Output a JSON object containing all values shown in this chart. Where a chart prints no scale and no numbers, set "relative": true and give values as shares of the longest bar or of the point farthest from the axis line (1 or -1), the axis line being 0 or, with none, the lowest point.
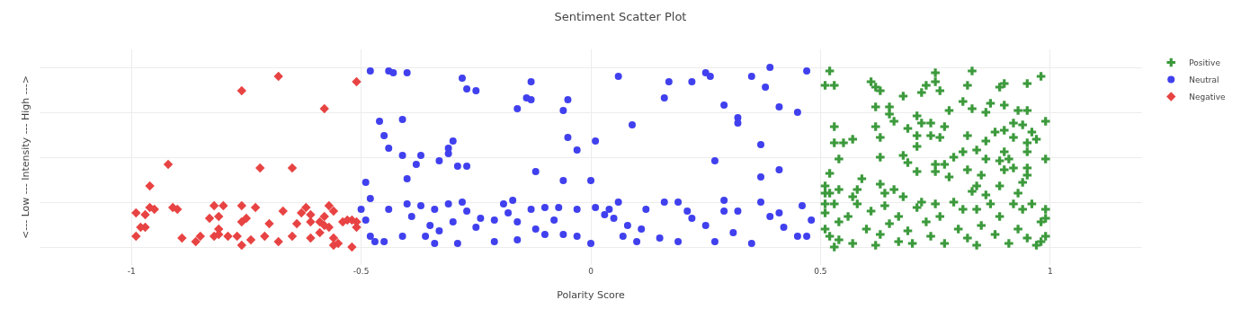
{
  "chart_data": {
    "type": "scatter",
    "title": "Sentiment Scatter Plot",
    "xlabel": "Polarity Score",
    "ylabel": "<--- Low --- Intensity --- High --->",
    "relative": true,
    "xlim": [
      -1.2,
      1.2
    ],
    "xticks": [
      -1,
      -0.5,
      0,
      0.5,
      1
    ],
    "grid": true,
    "legend": "top right",
    "series": [
      {
        "name": "Positive",
        "color": "#3c9a3c",
        "marker": "cross",
        "x": [
          0.52,
          0.51,
          0.53,
          0.61,
          0.62,
          0.63,
          0.68,
          0.75,
          0.75,
          0.73,
          0.72,
          0.76,
          0.83,
          0.82,
          0.9,
          0.89,
          0.95,
          0.98,
          0.62,
          0.65,
          0.65,
          0.66,
          0.78,
          0.81,
          0.83,
          0.86,
          0.87,
          0.9,
          0.93,
          0.95,
          0.99,
          0.53,
          0.53,
          0.55,
          0.57,
          0.54,
          0.62,
          0.63,
          0.63,
          0.69,
          0.71,
          0.72,
          0.74,
          0.71,
          0.74,
          0.76,
          0.77,
          0.71,
          0.68,
          0.69,
          0.71,
          0.75,
          0.75,
          0.77,
          0.78,
          0.79,
          0.81,
          0.82,
          0.84,
          0.86,
          0.88,
          0.9,
          0.92,
          0.94,
          0.92,
          0.9,
          0.95,
          0.97,
          0.96,
          0.95,
          0.99,
          0.86,
          0.89,
          0.91,
          0.9,
          0.92,
          0.95,
          0.95,
          0.82,
          0.85,
          0.52,
          0.59,
          0.63,
          0.66,
          0.89,
          0.84,
          0.83,
          0.86,
          0.93,
          0.94,
          0.51,
          0.51,
          0.52,
          0.54,
          0.58,
          0.57,
          0.64,
          0.68,
          0.51,
          0.53,
          0.51,
          0.51,
          0.52,
          0.53,
          0.54,
          0.54,
          0.56,
          0.57,
          0.58,
          0.6,
          0.62,
          0.61,
          0.63,
          0.64,
          0.65,
          0.67,
          0.67,
          0.69,
          0.7,
          0.71,
          0.72,
          0.73,
          0.74,
          0.75,
          0.76,
          0.77,
          0.79,
          0.8,
          0.81,
          0.82,
          0.84,
          0.84,
          0.85,
          0.87,
          0.88,
          0.89,
          0.91,
          0.92,
          0.93,
          0.94,
          0.95,
          0.96,
          0.97,
          0.98,
          0.98,
          0.99,
          0.99,
          0.99
        ],
        "values": [
          0.98,
          0.9,
          0.9,
          0.92,
          0.89,
          0.87,
          0.84,
          0.97,
          0.92,
          0.9,
          0.86,
          0.87,
          0.98,
          0.9,
          0.91,
          0.89,
          0.91,
          0.95,
          0.78,
          0.78,
          0.74,
          0.7,
          0.76,
          0.81,
          0.77,
          0.75,
          0.8,
          0.79,
          0.76,
          0.76,
          0.7,
          0.67,
          0.58,
          0.58,
          0.6,
          0.49,
          0.67,
          0.61,
          0.5,
          0.66,
          0.73,
          0.69,
          0.69,
          0.62,
          0.62,
          0.61,
          0.67,
          0.56,
          0.51,
          0.47,
          0.42,
          0.46,
          0.42,
          0.46,
          0.39,
          0.5,
          0.53,
          0.62,
          0.54,
          0.59,
          0.64,
          0.65,
          0.69,
          0.68,
          0.61,
          0.53,
          0.58,
          0.6,
          0.64,
          0.53,
          0.49,
          0.49,
          0.48,
          0.49,
          0.43,
          0.44,
          0.44,
          0.4,
          0.43,
          0.4,
          0.41,
          0.38,
          0.35,
          0.32,
          0.34,
          0.34,
          0.31,
          0.29,
          0.3,
          0.36,
          0.34,
          0.3,
          0.3,
          0.32,
          0.32,
          0.28,
          0.3,
          0.28,
          0.24,
          0.24,
          0.19,
          0.1,
          0.06,
          0.0,
          0.14,
          0.04,
          0.17,
          0.02,
          0.24,
          0.1,
          0.01,
          0.2,
          0.07,
          0.23,
          0.13,
          0.03,
          0.17,
          0.09,
          0.02,
          0.22,
          0.25,
          0.14,
          0.06,
          0.24,
          0.17,
          0.02,
          0.25,
          0.1,
          0.21,
          0.05,
          0.01,
          0.21,
          0.12,
          0.24,
          0.07,
          0.17,
          0.02,
          0.24,
          0.1,
          0.21,
          0.05,
          0.24,
          0.01,
          0.14,
          0.03,
          0.21,
          0.06,
          0.16
        ]
      },
      {
        "name": "Neutral",
        "color": "#4040ee",
        "marker": "circle",
        "x": [
          -0.48,
          -0.44,
          -0.43,
          -0.4,
          -0.28,
          -0.27,
          -0.25,
          -0.13,
          -0.14,
          -0.13,
          -0.16,
          -0.05,
          -0.06,
          0.06,
          0.17,
          0.22,
          0.25,
          0.26,
          0.16,
          0.29,
          0.35,
          0.39,
          0.38,
          0.41,
          0.45,
          0.47,
          -0.46,
          -0.41,
          -0.45,
          -0.44,
          -0.41,
          -0.37,
          -0.38,
          -0.33,
          -0.31,
          -0.31,
          -0.3,
          -0.29,
          -0.27,
          -0.49,
          -0.4,
          -0.12,
          -0.05,
          -0.03,
          -0.06,
          0.0,
          0.01,
          0.09,
          0.32,
          0.32,
          0.37,
          0.27,
          0.37,
          0.41,
          0.29,
          -0.17,
          -0.5,
          -0.48,
          -0.49,
          -0.48,
          -0.47,
          -0.45,
          -0.44,
          -0.41,
          -0.4,
          -0.39,
          -0.37,
          -0.36,
          -0.35,
          -0.34,
          -0.34,
          -0.33,
          -0.31,
          -0.3,
          -0.29,
          -0.28,
          -0.27,
          -0.25,
          -0.24,
          -0.21,
          -0.21,
          -0.19,
          -0.18,
          -0.16,
          -0.16,
          -0.13,
          -0.12,
          -0.1,
          -0.1,
          -0.08,
          -0.07,
          -0.06,
          -0.03,
          -0.03,
          0.0,
          0.01,
          0.03,
          0.04,
          0.05,
          0.06,
          0.07,
          0.08,
          0.1,
          0.11,
          0.12,
          0.15,
          0.16,
          0.19,
          0.19,
          0.21,
          0.22,
          0.25,
          0.27,
          0.29,
          0.31,
          0.32,
          0.35,
          0.37,
          0.39,
          0.41,
          0.42,
          0.45,
          0.46,
          0.48,
          0.47
        ],
        "values": [
          0.98,
          0.98,
          0.97,
          0.97,
          0.94,
          0.88,
          0.87,
          0.92,
          0.83,
          0.82,
          0.77,
          0.82,
          0.76,
          0.95,
          0.92,
          0.92,
          0.97,
          0.95,
          0.83,
          0.79,
          0.95,
          1,
          0.89,
          0.78,
          0.75,
          0.98,
          0.7,
          0.71,
          0.62,
          0.55,
          0.51,
          0.51,
          0.46,
          0.48,
          0.52,
          0.55,
          0.59,
          0.45,
          0.45,
          0.36,
          0.38,
          0.42,
          0.61,
          0.54,
          0.37,
          0.37,
          0.59,
          0.68,
          0.72,
          0.69,
          0.57,
          0.48,
          0.39,
          0.43,
          0.26,
          0.26,
          0.21,
          0.27,
          0.15,
          0.06,
          0.03,
          0.03,
          0.21,
          0.06,
          0.24,
          0.17,
          0.23,
          0.06,
          0.12,
          0.21,
          0.02,
          0.09,
          0.24,
          0.14,
          0.02,
          0.25,
          0.2,
          0.11,
          0.16,
          0.03,
          0.15,
          0.24,
          0.19,
          0.04,
          0.14,
          0.21,
          0.1,
          0.07,
          0.22,
          0.15,
          0.22,
          0.07,
          0.06,
          0.21,
          0.02,
          0.22,
          0.18,
          0.21,
          0.16,
          0.25,
          0.06,
          0.12,
          0.03,
          0.1,
          0.21,
          0.05,
          0.25,
          0.25,
          0.03,
          0.2,
          0.16,
          0.12,
          0.03,
          0.2,
          0.08,
          0.2,
          0.02,
          0.25,
          0.17,
          0.19,
          0.11,
          0.06,
          0.23,
          0.15,
          0.06
        ]
      },
      {
        "name": "Negative",
        "color": "#e84343",
        "marker": "diamond",
        "x": [
          -0.76,
          -0.68,
          -0.51,
          -0.58,
          -0.92,
          -0.96,
          -0.72,
          -0.65,
          -0.99,
          -0.99,
          -0.98,
          -0.97,
          -0.97,
          -0.96,
          -0.95,
          -0.91,
          -0.9,
          -0.89,
          -0.86,
          -0.85,
          -0.83,
          -0.82,
          -0.82,
          -0.81,
          -0.81,
          -0.81,
          -0.8,
          -0.79,
          -0.77,
          -0.76,
          -0.76,
          -0.76,
          -0.75,
          -0.74,
          -0.73,
          -0.71,
          -0.7,
          -0.68,
          -0.67,
          -0.65,
          -0.64,
          -0.63,
          -0.62,
          -0.61,
          -0.61,
          -0.61,
          -0.59,
          -0.59,
          -0.58,
          -0.58,
          -0.57,
          -0.57,
          -0.56,
          -0.56,
          -0.56,
          -0.55,
          -0.54,
          -0.53,
          -0.52,
          -0.52,
          -0.51,
          -0.51
        ],
        "values": [
          0.87,
          0.95,
          0.92,
          0.77,
          0.46,
          0.34,
          0.44,
          0.44,
          0.19,
          0.06,
          0.11,
          0.11,
          0.18,
          0.22,
          0.21,
          0.22,
          0.21,
          0.05,
          0.03,
          0.06,
          0.16,
          0.06,
          0.23,
          0.07,
          0.17,
          0.1,
          0.23,
          0.06,
          0.06,
          0.14,
          0.23,
          0.01,
          0.16,
          0.04,
          0.22,
          0.06,
          0.13,
          0.03,
          0.2,
          0.06,
          0.13,
          0.19,
          0.22,
          0.14,
          0.18,
          0.05,
          0.14,
          0.08,
          0.12,
          0.17,
          0.11,
          0.23,
          0.2,
          0.05,
          0.01,
          0.02,
          0.14,
          0.15,
          0.0,
          0.15,
          0.11,
          0.14
        ]
      }
    ]
  }
}
